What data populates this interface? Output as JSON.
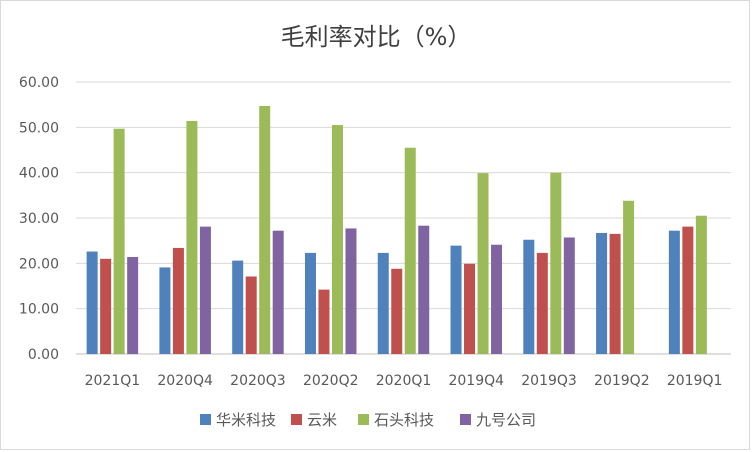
{
  "chart_data": {
    "type": "bar",
    "title": "毛利率对比（%）",
    "xlabel": "",
    "ylabel": "",
    "ylim": [
      0,
      60
    ],
    "yticks": [
      "0.00",
      "10.00",
      "20.00",
      "30.00",
      "40.00",
      "50.00",
      "60.00"
    ],
    "grid": true,
    "legend_position": "bottom",
    "categories": [
      "2021Q1",
      "2020Q4",
      "2020Q3",
      "2020Q2",
      "2020Q1",
      "2019Q4",
      "2019Q3",
      "2019Q2",
      "2019Q1"
    ],
    "series": [
      {
        "name": "华米科技",
        "color": "#4f81bd",
        "values": [
          22.6,
          19.1,
          20.6,
          22.3,
          22.3,
          23.9,
          25.2,
          26.7,
          27.2
        ]
      },
      {
        "name": "云米",
        "color": "#c0504d",
        "values": [
          21.0,
          23.4,
          17.1,
          14.2,
          18.8,
          19.9,
          22.3,
          26.5,
          28.1
        ]
      },
      {
        "name": "石头科技",
        "color": "#9bbb59",
        "values": [
          49.7,
          51.4,
          54.7,
          50.5,
          45.5,
          39.9,
          40.0,
          33.8,
          30.5
        ]
      },
      {
        "name": "九号公司",
        "color": "#8064a2",
        "values": [
          21.4,
          28.1,
          27.2,
          27.7,
          28.3,
          24.1,
          25.7,
          null,
          null
        ]
      }
    ]
  }
}
